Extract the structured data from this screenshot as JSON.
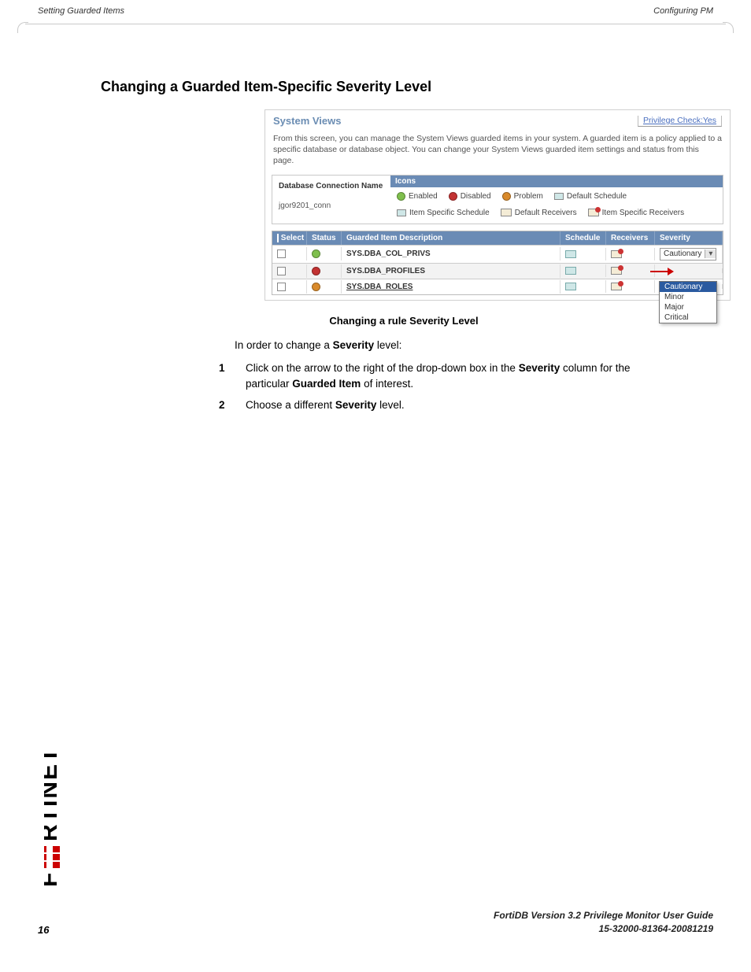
{
  "header": {
    "left": "Setting Guarded Items",
    "right": "Configuring PM"
  },
  "title": "Changing a Guarded Item-Specific Severity Level",
  "screenshot": {
    "heading": "System Views",
    "priv_check_label": "Privilege Check:Yes",
    "description": "From this screen, you can manage the System Views guarded items in your system. A guarded item is a policy applied to a specific database or database object. You can change your System Views guarded item settings and status from this page.",
    "conn_label": "Database Connection Name",
    "conn_value": "jgor9201_conn",
    "icons_title": "Icons",
    "legend": {
      "enabled": "Enabled",
      "disabled": "Disabled",
      "problem": "Problem",
      "def_sched": "Default Schedule",
      "item_sched": "Item Specific Schedule",
      "def_recv": "Default Receivers",
      "item_recv": "Item Specific Receivers"
    },
    "legend_colors": {
      "enabled": "#7fbf4d",
      "disabled": "#c33333",
      "problem": "#d98a2b",
      "def_sched_bg": "#cfe7e7",
      "item_sched_bg": "#cfe7e7"
    },
    "columns": {
      "select": "Select",
      "status": "Status",
      "desc": "Guarded Item Description",
      "schedule": "Schedule",
      "receivers": "Receivers",
      "severity": "Severity"
    },
    "rows": [
      {
        "desc": "SYS.DBA_COL_PRIVS",
        "status_color": "#7fbf4d",
        "recv_badge": "#3a8a3a",
        "severity": "Cautionary",
        "bold": true
      },
      {
        "desc": "SYS.DBA_PROFILES",
        "status_color": "#c33333",
        "recv_badge": "#c33",
        "severity": "",
        "bold": true,
        "show_arrow": true
      },
      {
        "desc": "SYS.DBA_ROLES",
        "status_color": "#d98a2b",
        "recv_badge": "#c33",
        "severity": "",
        "bold": true,
        "underline": true
      }
    ],
    "dropdown": [
      "Cautionary",
      "Minor",
      "Major",
      "Critical"
    ],
    "caption": "Changing a rule Severity Level"
  },
  "intro_prefix": "In order to change a ",
  "intro_bold": "Severity",
  "intro_suffix": " level:",
  "steps": [
    {
      "n": "1",
      "parts": [
        "Click on the arrow to the right of the drop-down box in the ",
        "Severity",
        " column for the particular ",
        "Guarded Item",
        " of interest."
      ]
    },
    {
      "n": "2",
      "parts": [
        "Choose a different ",
        "Severity",
        " level."
      ]
    }
  ],
  "footer": {
    "line1": "FortiDB Version 3.2 Privilege Monitor  User Guide",
    "line2": "15-32000-81364-20081219",
    "page": "16"
  },
  "colors": {
    "hdr_bar": "#6a8bb5",
    "link": "#4a6fbf"
  }
}
